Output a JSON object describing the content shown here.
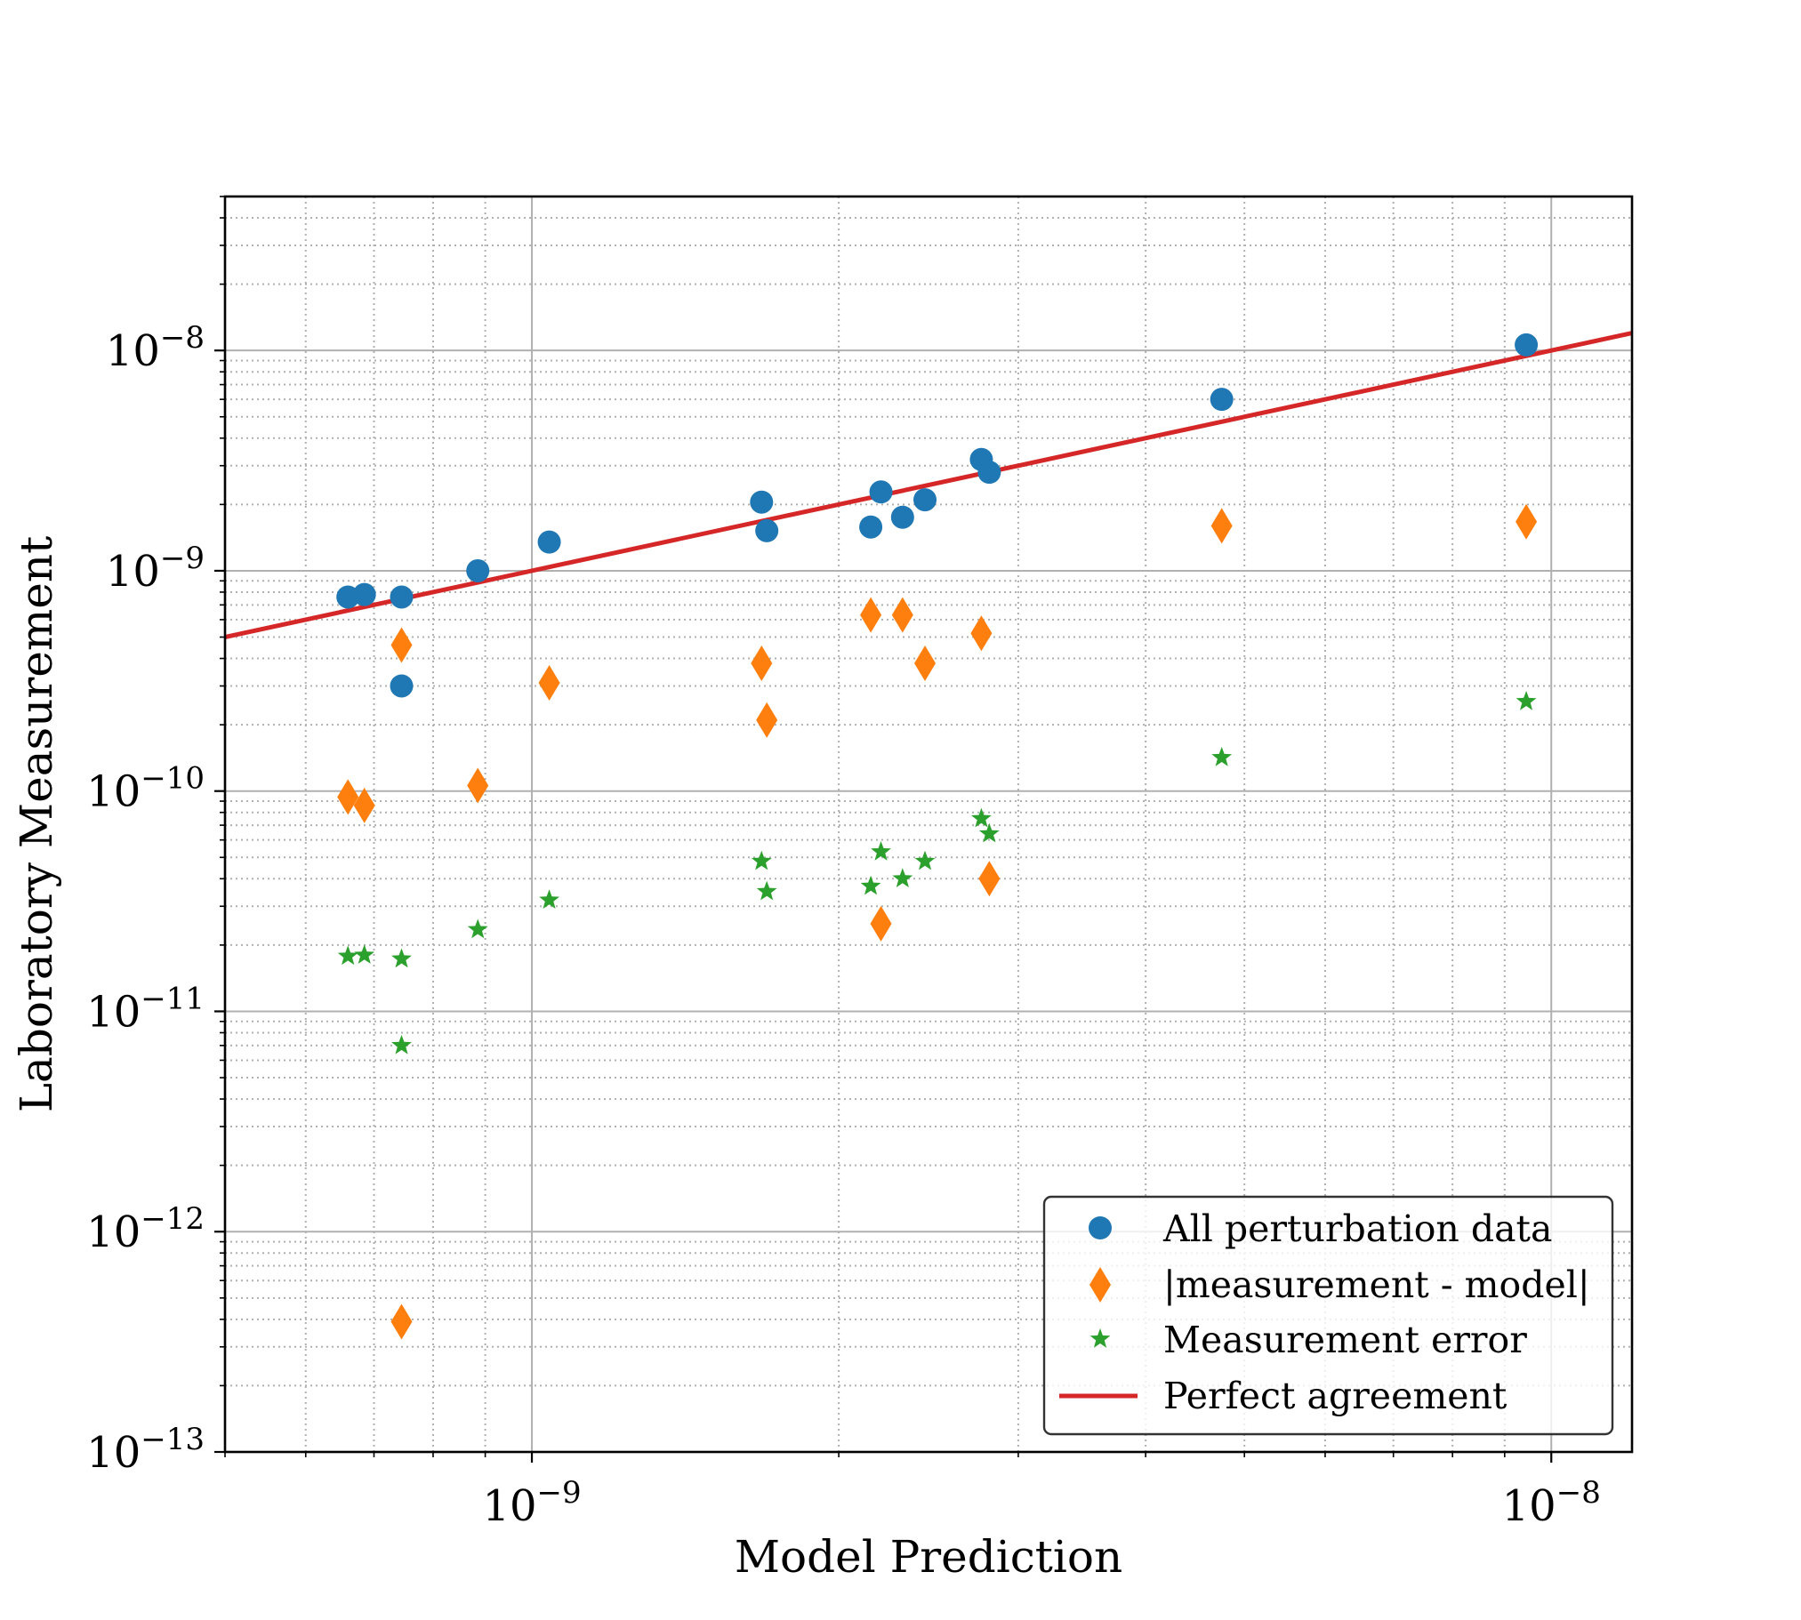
{
  "chart_data": {
    "type": "scatter",
    "xlabel": "Model Prediction",
    "ylabel": "Laboratory Measurement",
    "xscale": "log",
    "yscale": "log",
    "xlim": [
      5e-10,
      1.2e-08
    ],
    "ylim": [
      1e-13,
      5e-08
    ],
    "grid": "major solid, minor dotted",
    "legend_position": "lower right",
    "x_ticks": [
      {
        "value": 1e-09,
        "base": "10",
        "exp": "−9"
      },
      {
        "value": 1e-08,
        "base": "10",
        "exp": "−8"
      }
    ],
    "y_ticks": [
      {
        "value": 1e-08,
        "base": "10",
        "exp": "−8"
      },
      {
        "value": 1e-09,
        "base": "10",
        "exp": "−9"
      },
      {
        "value": 1e-10,
        "base": "10",
        "exp": "−10"
      },
      {
        "value": 1e-11,
        "base": "10",
        "exp": "−11"
      },
      {
        "value": 1e-12,
        "base": "10",
        "exp": "−12"
      },
      {
        "value": 1e-13,
        "base": "10",
        "exp": "−13"
      }
    ],
    "x": [
      6.6e-10,
      6.85e-10,
      7.45e-10,
      7.45e-10,
      8.85e-10,
      1.04e-09,
      1.68e-09,
      1.7e-09,
      2.15e-09,
      2.2e-09,
      2.31e-09,
      2.43e-09,
      2.76e-09,
      2.81e-09,
      4.75e-09,
      9.45e-09
    ],
    "series": [
      {
        "name": "All perturbation data",
        "marker": "circle",
        "color": "#1f77b4",
        "values": [
          7.6e-10,
          7.8e-10,
          7.6e-10,
          3e-10,
          1e-09,
          1.35e-09,
          2.05e-09,
          1.52e-09,
          1.58e-09,
          2.28e-09,
          1.75e-09,
          2.1e-09,
          3.2e-09,
          2.8e-09,
          6e-09,
          1.06e-08
        ]
      },
      {
        "name": "|measurement - model|",
        "marker": "diamond",
        "color": "#ff7f0e",
        "values": [
          9.4e-11,
          8.6e-11,
          4.6e-10,
          3.9e-13,
          1.06e-10,
          3.1e-10,
          3.8e-10,
          2.1e-10,
          6.3e-10,
          2.5e-11,
          6.3e-10,
          3.8e-10,
          5.2e-10,
          4e-11,
          1.6e-09,
          1.67e-09
        ]
      },
      {
        "name": "Measurement error",
        "marker": "star",
        "color": "#2ca02c",
        "values": [
          1.78e-11,
          1.8e-11,
          1.73e-11,
          7e-12,
          2.35e-11,
          3.2e-11,
          4.8e-11,
          3.5e-11,
          3.7e-11,
          5.3e-11,
          4e-11,
          4.8e-11,
          7.5e-11,
          6.4e-11,
          1.42e-10,
          2.55e-10
        ]
      }
    ],
    "reference_line": {
      "name": "Perfect agreement",
      "color": "#d62728",
      "x": [
        5e-10,
        1.2e-08
      ],
      "y": [
        5e-10,
        1.2e-08
      ]
    }
  }
}
